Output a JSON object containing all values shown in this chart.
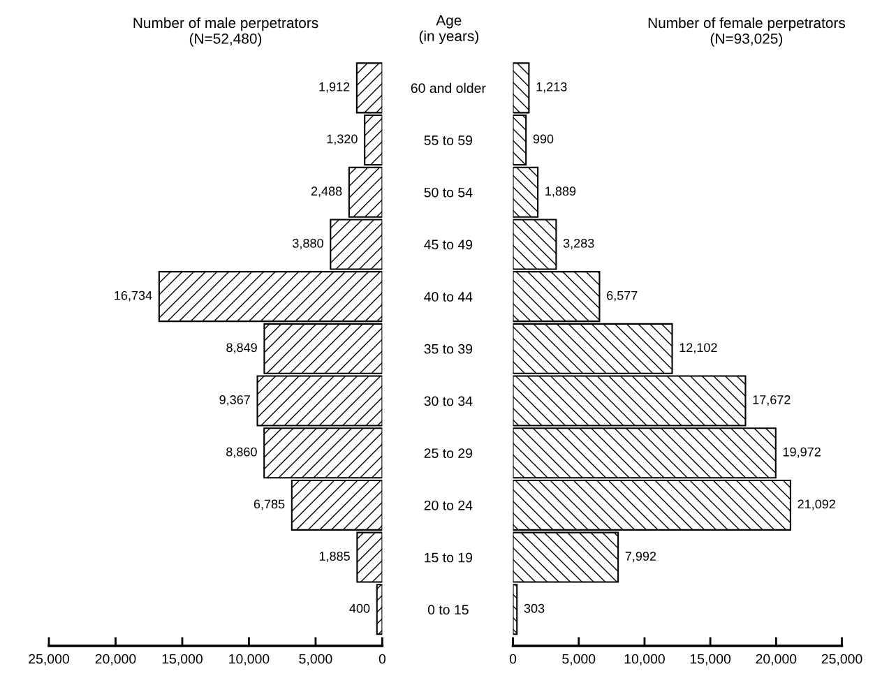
{
  "chart_data": [
    {
      "type": "bar",
      "orientation": "horizontal",
      "title": "Number of male perpetrators\n(N=52,480)",
      "annotations": [
        "Age\n(in years)"
      ],
      "categories": [
        "60 and older",
        "55 to 59",
        "50 to 54",
        "45 to 49",
        "40 to 44",
        "35 to 39",
        "30 to 34",
        "25 to 29",
        "20 to 24",
        "15 to 19",
        "0 to 15"
      ],
      "values": [
        1912,
        1320,
        2488,
        3880,
        16734,
        8849,
        9367,
        8860,
        6785,
        1885,
        400
      ],
      "value_labels": [
        "1,912",
        "1,320",
        "2,488",
        "3,880",
        "16,734",
        "8,849",
        "9,367",
        "8,860",
        "6,785",
        "1,885",
        "400"
      ],
      "color": "#000000",
      "xlim": [
        25000,
        0
      ],
      "xticks": [
        {
          "value": 25000,
          "label": "25,000"
        },
        {
          "value": 20000,
          "label": "20,000"
        },
        {
          "value": 15000,
          "label": "15,000"
        },
        {
          "value": 10000,
          "label": "10,000"
        },
        {
          "value": 5000,
          "label": "5,000"
        },
        0
      ],
      "grid": false
    },
    {
      "type": "bar",
      "orientation": "horizontal",
      "title": "Number of female perpetrators\n(N=93,025)",
      "categories": [
        null,
        null,
        null,
        null,
        null,
        null,
        null,
        null,
        null,
        null,
        null
      ],
      "values": [
        1213,
        990,
        1889,
        3283,
        6577,
        12102,
        17672,
        19972,
        21092,
        7992,
        303
      ],
      "value_labels": [
        "1,213",
        "990",
        "1,889",
        "3,283",
        "6,577",
        "12,102",
        "17,672",
        "19,972",
        "21,092",
        "7,992",
        "303"
      ],
      "color": "#000000",
      "xlim": [
        0,
        25000
      ],
      "xticks": [
        0,
        {
          "value": 5000,
          "label": "5,000"
        },
        {
          "value": 10000,
          "label": "10,000"
        },
        {
          "value": 15000,
          "label": "15,000"
        },
        {
          "value": 20000,
          "label": "20,000"
        },
        {
          "value": 25000,
          "label": "25,000"
        }
      ],
      "grid": false
    }
  ]
}
